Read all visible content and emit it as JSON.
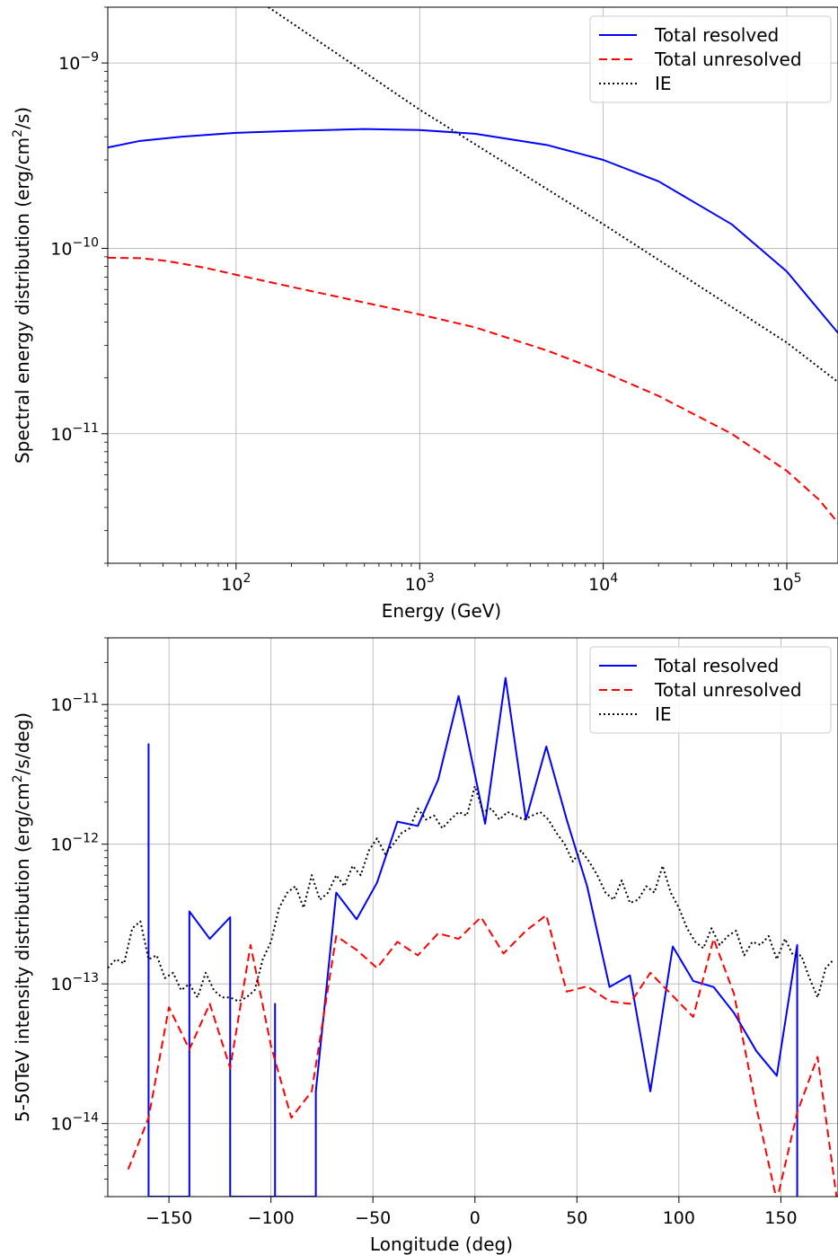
{
  "chart_data": [
    {
      "type": "line",
      "xscale": "log",
      "yscale": "log",
      "xlabel": "Energy (GeV)",
      "ylabel": "Spectral energy distribution (erg/cm2/s)",
      "ylabel_parts": [
        "Spectral energy distribution (erg/cm",
        "2",
        "/s)"
      ],
      "xlim": [
        20,
        190000
      ],
      "ylim": [
        2e-12,
        2e-09
      ],
      "xticks": [
        {
          "value": 100,
          "base": "10",
          "exp": "2"
        },
        {
          "value": 1000,
          "base": "10",
          "exp": "3"
        },
        {
          "value": 10000,
          "base": "10",
          "exp": "4"
        },
        {
          "value": 100000,
          "base": "10",
          "exp": "5"
        }
      ],
      "yticks": [
        {
          "value": 1e-11,
          "base": "10",
          "exp": "−11"
        },
        {
          "value": 1e-10,
          "base": "10",
          "exp": "−10"
        },
        {
          "value": 1e-09,
          "base": "10",
          "exp": "−9"
        }
      ],
      "grid": true,
      "legend": "top-right",
      "series": [
        {
          "name": "Total resolved",
          "color": "#0000ff",
          "style": "solid",
          "x": [
            20,
            30,
            50,
            100,
            200,
            500,
            1000,
            2000,
            5000,
            10000,
            20000,
            50000,
            100000,
            190000
          ],
          "y": [
            3.5e-10,
            3.8e-10,
            4e-10,
            4.2e-10,
            4.3e-10,
            4.4e-10,
            4.35e-10,
            4.15e-10,
            3.6e-10,
            3e-10,
            2.3e-10,
            1.35e-10,
            7.5e-11,
            3.5e-11
          ]
        },
        {
          "name": "Total unresolved",
          "color": "#ff0000",
          "style": "dashed",
          "x": [
            20,
            30,
            40,
            50,
            70,
            100,
            200,
            500,
            1000,
            2000,
            5000,
            10000,
            20000,
            50000,
            100000,
            150000,
            190000
          ],
          "y": [
            8.9e-11,
            8.85e-11,
            8.6e-11,
            8.3e-11,
            7.8e-11,
            7.2e-11,
            6.2e-11,
            5.1e-11,
            4.4e-11,
            3.75e-11,
            2.8e-11,
            2.15e-11,
            1.6e-11,
            1e-11,
            6.3e-12,
            4.4e-12,
            3.3e-12
          ]
        },
        {
          "name": "IE",
          "color": "#000000",
          "style": "dotted",
          "x": [
            150,
            1000,
            10000,
            100000,
            190000
          ],
          "y": [
            2e-09,
            5.6e-10,
            1.35e-10,
            3.1e-11,
            1.9e-11
          ]
        }
      ]
    },
    {
      "type": "line",
      "xscale": "linear",
      "yscale": "log",
      "xlabel": "Longitude (deg)",
      "ylabel": "5-50TeV intensity distribution (erg/cm2/s/deg)",
      "ylabel_parts": [
        "5-50TeV intensity distribution (erg/cm",
        "2",
        "/s/deg)"
      ],
      "xlim": [
        -180,
        178
      ],
      "ylim": [
        3e-15,
        3e-11
      ],
      "xticks": [
        {
          "value": -150,
          "label": "−150"
        },
        {
          "value": -100,
          "label": "−100"
        },
        {
          "value": -50,
          "label": "−50"
        },
        {
          "value": 0,
          "label": "0"
        },
        {
          "value": 50,
          "label": "50"
        },
        {
          "value": 100,
          "label": "100"
        },
        {
          "value": 150,
          "label": "150"
        }
      ],
      "yticks": [
        {
          "value": 1e-14,
          "base": "10",
          "exp": "−14"
        },
        {
          "value": 1e-13,
          "base": "10",
          "exp": "−13"
        },
        {
          "value": 1e-12,
          "base": "10",
          "exp": "−12"
        },
        {
          "value": 1e-11,
          "base": "10",
          "exp": "−11"
        }
      ],
      "grid": true,
      "legend": "top-right",
      "series": [
        {
          "name": "Total resolved",
          "color": "#0000ff",
          "style": "solid",
          "x": [
            -160,
            -160,
            -160,
            -140,
            -140,
            -130,
            -120,
            -120,
            -98,
            -98,
            -98,
            -78,
            -78,
            -68,
            -58,
            -48,
            -38,
            -28,
            -18,
            -8,
            5,
            15,
            25,
            35,
            45,
            55,
            66,
            76,
            86,
            97,
            107,
            117,
            127,
            138,
            148,
            158,
            158
          ],
          "y": [
            3e-15,
            5.2e-12,
            3e-15,
            3e-15,
            3.3e-13,
            2.1e-13,
            3e-13,
            3e-15,
            3e-15,
            7.2e-14,
            3e-15,
            3e-15,
            1.7e-14,
            4.5e-13,
            2.9e-13,
            5.3e-13,
            1.45e-12,
            1.35e-12,
            2.9e-12,
            1.15e-11,
            1.4e-12,
            1.55e-11,
            1.5e-12,
            5e-12,
            1.5e-12,
            5e-13,
            9.5e-14,
            1.15e-13,
            1.7e-14,
            1.85e-13,
            1.05e-13,
            9.5e-14,
            6.2e-14,
            3.3e-14,
            2.2e-14,
            1.9e-13,
            3e-15
          ]
        },
        {
          "name": "Total unresolved",
          "color": "#ff0000",
          "style": "dashed",
          "x": [
            -170,
            -160,
            -150,
            -140,
            -130,
            -120,
            -110,
            -100,
            -90,
            -80,
            -68,
            -58,
            -48,
            -38,
            -28,
            -18,
            -8,
            3,
            14,
            25,
            35,
            45,
            55,
            66,
            76,
            86,
            97,
            107,
            117,
            127,
            138,
            148,
            158,
            168,
            178
          ],
          "y": [
            4.7e-15,
            1.1e-14,
            6.8e-14,
            3.4e-14,
            7.2e-14,
            2.5e-14,
            1.9e-13,
            3.6e-14,
            1.1e-14,
            1.7e-14,
            2.2e-13,
            1.75e-13,
            1.3e-13,
            2e-13,
            1.6e-13,
            2.3e-13,
            2.1e-13,
            3e-13,
            1.65e-13,
            2.4e-13,
            3.1e-13,
            8.8e-14,
            9.6e-14,
            7.5e-14,
            7.2e-14,
            1.2e-13,
            8.2e-14,
            5.8e-14,
            2.1e-13,
            8.5e-14,
            1.3e-14,
            2.8e-15,
            1.2e-14,
            3e-14,
            2.5e-15
          ]
        },
        {
          "name": "IE",
          "color": "#000000",
          "style": "dotted",
          "x": [
            -180,
            -176,
            -172,
            -168,
            -164,
            -160,
            -156,
            -152,
            -148,
            -144,
            -140,
            -136,
            -132,
            -128,
            -124,
            -120,
            -116,
            -112,
            -108,
            -104,
            -100,
            -96,
            -92,
            -88,
            -84,
            -80,
            -76,
            -72,
            -68,
            -64,
            -60,
            -56,
            -52,
            -48,
            -44,
            -40,
            -36,
            -32,
            -28,
            -24,
            -20,
            -16,
            -12,
            -8,
            -4,
            0,
            4,
            8,
            12,
            16,
            20,
            24,
            28,
            32,
            36,
            40,
            44,
            48,
            52,
            56,
            60,
            64,
            68,
            72,
            76,
            80,
            84,
            88,
            92,
            96,
            100,
            104,
            108,
            112,
            116,
            120,
            124,
            128,
            132,
            136,
            140,
            144,
            148,
            152,
            156,
            160,
            164,
            168,
            172,
            176
          ],
          "y": [
            1.3e-13,
            1.5e-13,
            1.4e-13,
            2.5e-13,
            2.8e-13,
            1.5e-13,
            1.6e-13,
            1.1e-13,
            1.2e-13,
            9e-14,
            1e-13,
            8e-14,
            1.2e-13,
            9e-14,
            8e-14,
            8e-14,
            7.5e-14,
            8e-14,
            9e-14,
            1.5e-13,
            2e-13,
            3.5e-13,
            4.5e-13,
            5e-13,
            3.5e-13,
            6e-13,
            4e-13,
            4.5e-13,
            6e-13,
            5e-13,
            7e-13,
            6e-13,
            9e-13,
            1.1e-12,
            8.5e-13,
            1e-12,
            1.2e-12,
            1.3e-12,
            1.8e-12,
            1.5e-12,
            1.6e-12,
            1.3e-12,
            1.5e-12,
            1.7e-12,
            1.6e-12,
            2.6e-12,
            1.7e-12,
            1.8e-12,
            1.5e-12,
            1.7e-12,
            1.6e-12,
            1.5e-12,
            1.6e-12,
            1.7e-12,
            1.5e-12,
            1.2e-12,
            1e-12,
            7.5e-13,
            9e-13,
            7.5e-13,
            6e-13,
            4.5e-13,
            4e-13,
            5.5e-13,
            3.8e-13,
            4e-13,
            5e-13,
            4.5e-13,
            7e-13,
            4.5e-13,
            3.5e-13,
            2.5e-13,
            2e-13,
            1.8e-13,
            2.5e-13,
            1.9e-13,
            2.2e-13,
            2.4e-13,
            1.6e-13,
            2e-13,
            1.9e-13,
            2.2e-13,
            1.5e-13,
            2.1e-13,
            1.6e-13,
            1.6e-13,
            1.1e-13,
            8e-14,
            1.3e-13,
            1.5e-13
          ]
        }
      ]
    }
  ]
}
